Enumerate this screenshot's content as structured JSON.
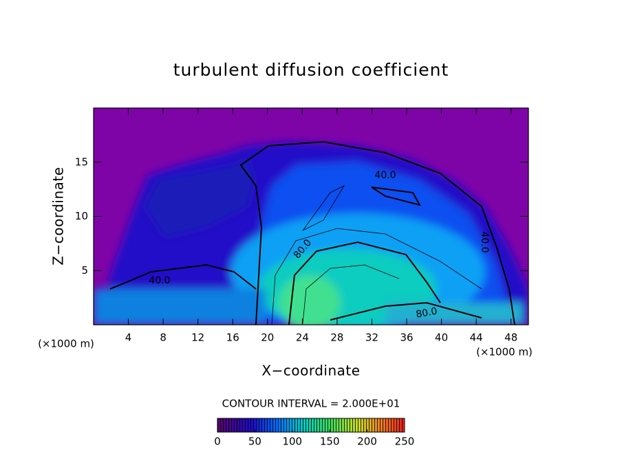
{
  "chart_data": {
    "type": "contour",
    "title": "turbulent diffusion coefficient",
    "x_label": "X−coordinate",
    "y_label": "Z−coordinate",
    "axis_unit_labels": [
      "(×1000 m)",
      "(×1000 m)"
    ],
    "xlim": [
      0,
      50
    ],
    "xticks": [
      4,
      8,
      12,
      16,
      20,
      24,
      28,
      32,
      36,
      40,
      44,
      48
    ],
    "ylim": [
      0,
      20
    ],
    "yticks": [
      5,
      10,
      15
    ],
    "contour_labels": [
      "40.0",
      "80.0",
      "40.0",
      "80.0",
      "40.0"
    ],
    "contour_interval_label": "CONTOUR INTERVAL = 2.000E+01",
    "colorbar": {
      "lim": [
        0,
        250
      ],
      "ticks": [
        0,
        50,
        100,
        150,
        200,
        250
      ]
    }
  }
}
